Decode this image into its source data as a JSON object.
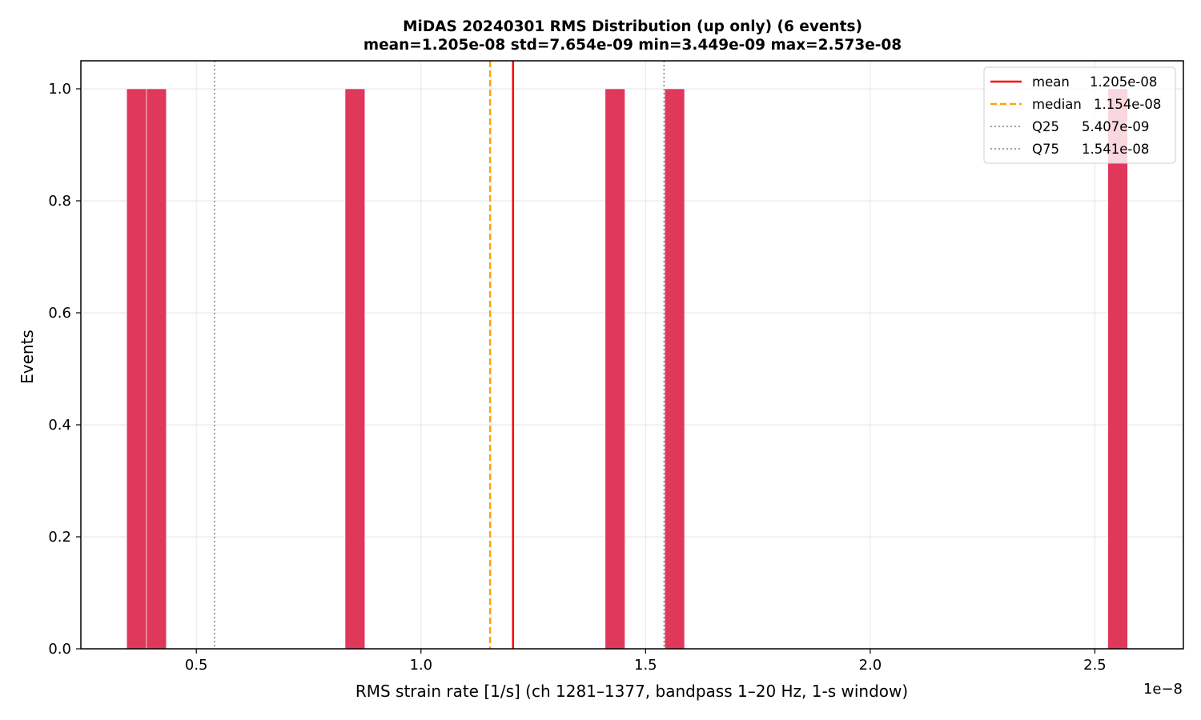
{
  "chart_data": {
    "type": "histogram",
    "title_line1": "MiDAS 20240301  RMS Distribution  (up only)  (6 events)",
    "title_line2": "mean=1.205e-08  std=7.654e-09  min=3.449e-09  max=2.573e-08",
    "xlabel": "RMS strain rate [1/s]  (ch 1281–1377, bandpass 1–20 Hz, 1-s window)",
    "ylabel": "Events",
    "x_offset_label": "1e−8",
    "xlim": [
      0.243,
      2.697
    ],
    "ylim": [
      0,
      1.05
    ],
    "xticks": [
      {
        "value": 0.5,
        "label": "0.5"
      },
      {
        "value": 1.0,
        "label": "1.0"
      },
      {
        "value": 1.5,
        "label": "1.5"
      },
      {
        "value": 2.0,
        "label": "2.0"
      },
      {
        "value": 2.5,
        "label": "2.5"
      }
    ],
    "yticks": [
      {
        "value": 0.0,
        "label": "0.0"
      },
      {
        "value": 0.2,
        "label": "0.2"
      },
      {
        "value": 0.4,
        "label": "0.4"
      },
      {
        "value": 0.6,
        "label": "0.6"
      },
      {
        "value": 0.8,
        "label": "0.8"
      },
      {
        "value": 1.0,
        "label": "1.0"
      }
    ],
    "bins": [
      {
        "x0": 0.3449,
        "x1": 0.3891,
        "count": 1
      },
      {
        "x0": 0.3891,
        "x1": 0.4333,
        "count": 1
      },
      {
        "x0": 0.8311,
        "x1": 0.8753,
        "count": 1
      },
      {
        "x0": 1.4099,
        "x1": 1.4541,
        "count": 1
      },
      {
        "x0": 1.5425,
        "x1": 1.5867,
        "count": 1
      },
      {
        "x0": 2.5288,
        "x1": 2.573,
        "count": 1
      }
    ],
    "bar_color": "#e0385b",
    "grid": true,
    "legend_position": "upper right",
    "vlines": [
      {
        "key": "mean",
        "name": "mean",
        "value_text": "1.205e-08",
        "x": 1.205,
        "color": "#ff0000",
        "style": "solid"
      },
      {
        "key": "median",
        "name": "median",
        "value_text": "1.154e-08",
        "x": 1.154,
        "color": "#ffa500",
        "style": "dashed"
      },
      {
        "key": "q25",
        "name": "Q25",
        "value_text": "5.407e-09",
        "x": 0.5407,
        "color": "#808080",
        "style": "dotted"
      },
      {
        "key": "q75",
        "name": "Q75",
        "value_text": "1.541e-08",
        "x": 1.541,
        "color": "#808080",
        "style": "dotted"
      }
    ]
  }
}
